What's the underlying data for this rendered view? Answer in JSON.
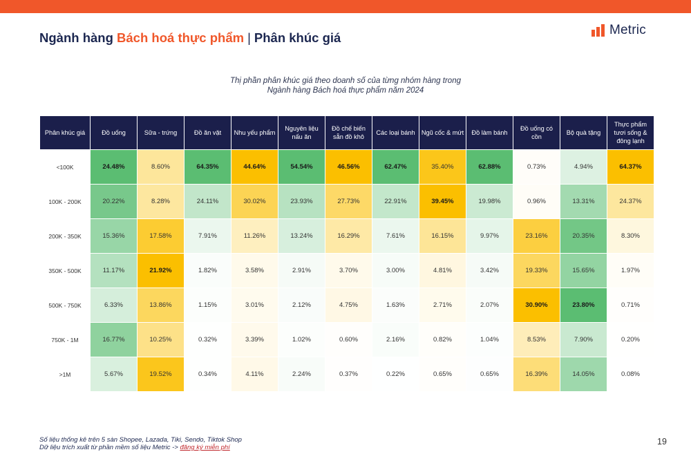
{
  "header": {
    "title_prefix": "Ngành hàng ",
    "title_highlight": "Bách hoá thực phẩm",
    "title_separator": "|",
    "title_suffix": "Phân khúc giá",
    "logo_text": "Metric",
    "accent_color": "#f0572a",
    "navy_color": "#1c2750"
  },
  "subtitle": {
    "line1": "Thị phần phân khúc giá theo doanh số của từng nhóm hàng trong",
    "line2": "Ngành hàng Bách hoá thực phẩm năm 2024"
  },
  "table": {
    "corner_label": "Phân khúc giá",
    "columns": [
      "Đồ uống",
      "Sữa - trứng",
      "Đồ ăn vặt",
      "Nhu yếu phẩm",
      "Nguyên liệu nấu ăn",
      "Đồ chế biến sẵn đồ khô",
      "Các loại bánh",
      "Ngũ cốc & mứt",
      "Đồ làm bánh",
      "Đồ uống có cồn",
      "Bộ quà tặng",
      "Thực phẩm tươi sống & đông lạnh"
    ],
    "rows": [
      {
        "label": "<100K",
        "values": [
          "24.48%",
          "8.60%",
          "64.35%",
          "44.64%",
          "54.54%",
          "46.56%",
          "62.47%",
          "35.40%",
          "62.88%",
          "0.73%",
          "4.94%",
          "64.37%"
        ]
      },
      {
        "label": "100K - 200K",
        "values": [
          "20.22%",
          "8.28%",
          "24.11%",
          "30.02%",
          "23.93%",
          "27.73%",
          "22.91%",
          "39.45%",
          "19.98%",
          "0.96%",
          "13.31%",
          "24.37%"
        ]
      },
      {
        "label": "200K - 350K",
        "values": [
          "15.36%",
          "17.58%",
          "7.91%",
          "11.26%",
          "13.24%",
          "16.29%",
          "7.61%",
          "16.15%",
          "9.97%",
          "23.16%",
          "20.35%",
          "8.30%"
        ]
      },
      {
        "label": "350K - 500K",
        "values": [
          "11.17%",
          "21.92%",
          "1.82%",
          "3.58%",
          "2.91%",
          "3.70%",
          "3.00%",
          "4.81%",
          "3.42%",
          "19.33%",
          "15.65%",
          "1.97%"
        ]
      },
      {
        "label": "500K - 750K",
        "values": [
          "6.33%",
          "13.86%",
          "1.15%",
          "3.01%",
          "2.12%",
          "4.75%",
          "1.63%",
          "2.71%",
          "2.07%",
          "30.90%",
          "23.80%",
          "0.71%"
        ]
      },
      {
        "label": "750K - 1M",
        "values": [
          "16.77%",
          "10.25%",
          "0.32%",
          "3.39%",
          "1.02%",
          "0.60%",
          "2.16%",
          "0.82%",
          "1.04%",
          "8.53%",
          "7.90%",
          "0.20%"
        ]
      },
      {
        "label": ">1M",
        "values": [
          "5.67%",
          "19.52%",
          "0.34%",
          "4.11%",
          "2.24%",
          "0.37%",
          "0.22%",
          "0.65%",
          "0.65%",
          "16.39%",
          "14.05%",
          "0.08%"
        ]
      }
    ],
    "bold_cells": [
      [
        0,
        0
      ],
      [
        0,
        2
      ],
      [
        0,
        3
      ],
      [
        0,
        4
      ],
      [
        0,
        5
      ],
      [
        0,
        6
      ],
      [
        0,
        8
      ],
      [
        0,
        11
      ],
      [
        1,
        7
      ],
      [
        3,
        1
      ],
      [
        4,
        9
      ],
      [
        4,
        10
      ]
    ],
    "color_scale": {
      "green": "#5bbd72",
      "yellow": "#fbbf00",
      "white": "#ffffff"
    },
    "yellow_columns": [
      1,
      3,
      5,
      7,
      9,
      11
    ]
  },
  "footer": {
    "line1": "Số liệu thống kê trên 5 sàn Shopee, Lazada, Tiki, Sendo, Tiktok Shop",
    "line2_prefix": "Dữ liệu trích xuất từ phần mềm số liệu Metric -> ",
    "line2_link": "đăng ký miễn phí",
    "page_number": "19"
  }
}
